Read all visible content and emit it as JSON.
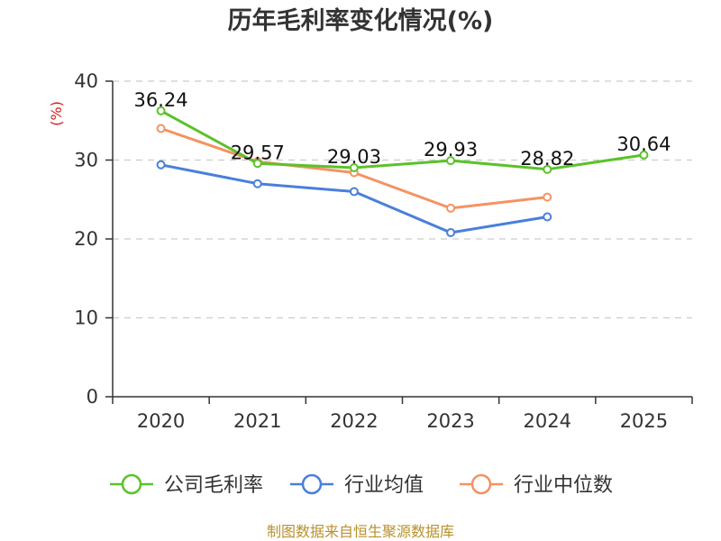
{
  "chart_data": {
    "type": "line",
    "title": "历年毛利率变化情况(%)",
    "ylabel": "(%)",
    "xlabel": "",
    "categories": [
      "2020",
      "2021",
      "2022",
      "2023",
      "2024",
      "2025"
    ],
    "ylim": [
      0,
      40
    ],
    "yticks": [
      "0",
      "10",
      "20",
      "30",
      "40"
    ],
    "grid": true,
    "legend_position": "bottom",
    "series": [
      {
        "name": "公司毛利率",
        "color": "#5bc22a",
        "values": [
          36.24,
          29.57,
          29.03,
          29.93,
          28.82,
          30.64
        ],
        "labels": [
          "36.24",
          "29.57",
          "29.03",
          "29.93",
          "28.82",
          "30.64"
        ]
      },
      {
        "name": "行业均值",
        "color": "#4a7fdb",
        "values": [
          29.4,
          27.0,
          26.0,
          20.8,
          22.8,
          null
        ]
      },
      {
        "name": "行业中位数",
        "color": "#f59262",
        "values": [
          34.0,
          29.8,
          28.4,
          23.9,
          25.3,
          null
        ]
      }
    ],
    "source": "制图数据来自恒生聚源数据库"
  }
}
